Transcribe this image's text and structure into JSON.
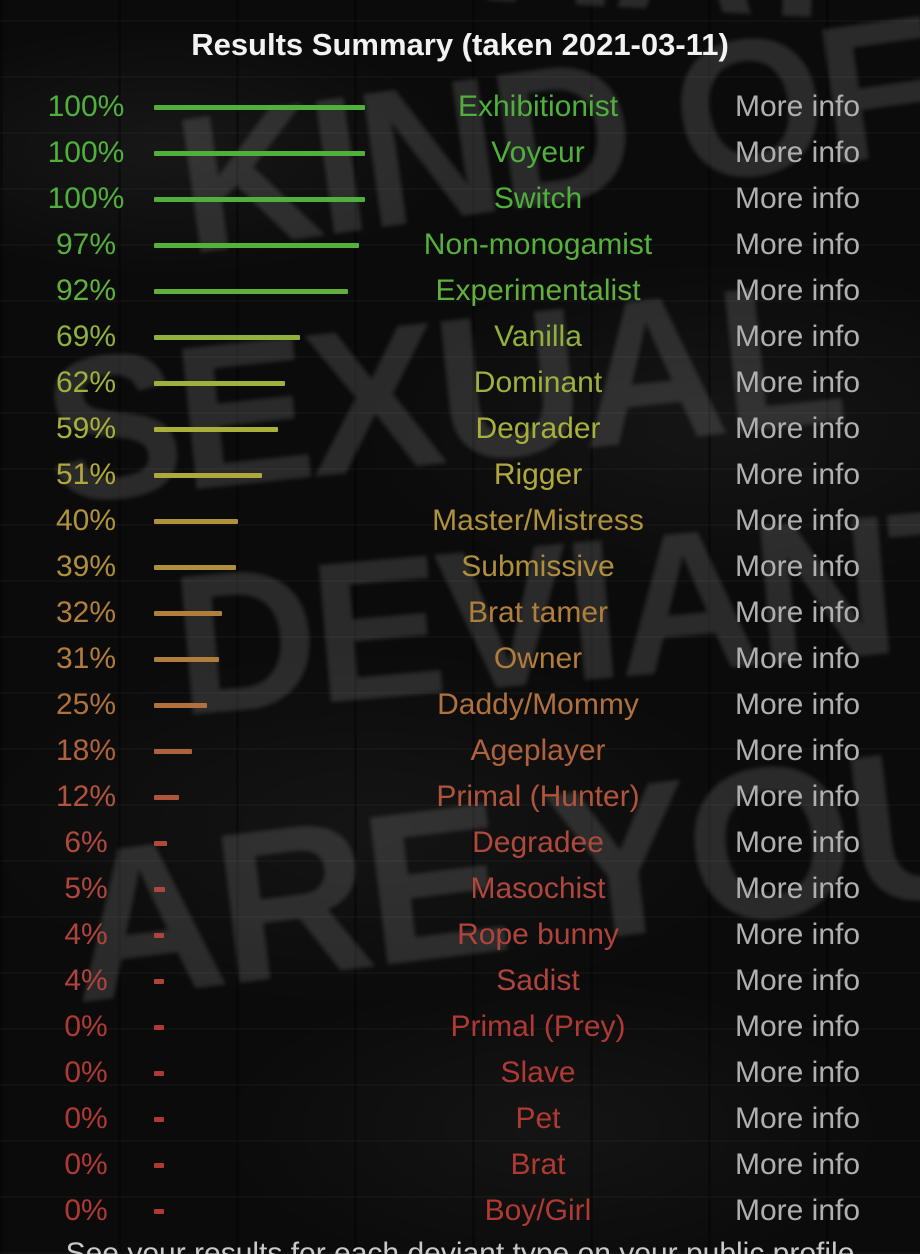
{
  "title": "Results Summary (taken 2021-03-11)",
  "more_info_label": "More info",
  "colors": {
    "background": "#0b0b0b",
    "title_text": "#f2f2f2",
    "more_info_text": "#b0b0b0",
    "footer_text": "#c9c9c9"
  },
  "background": {
    "graffiti_words": [
      "WHAT",
      "KIND OF",
      "SEXUAL",
      "DEVIANT",
      "ARE YOU"
    ]
  },
  "results": [
    {
      "percent": "100%",
      "value": 100,
      "label": "Exhibitionist",
      "color": "#4fb03c"
    },
    {
      "percent": "100%",
      "value": 100,
      "label": "Voyeur",
      "color": "#4fb03c"
    },
    {
      "percent": "100%",
      "value": 100,
      "label": "Switch",
      "color": "#4fb03c"
    },
    {
      "percent": "97%",
      "value": 97,
      "label": "Non-monogamist",
      "color": "#56b03c"
    },
    {
      "percent": "92%",
      "value": 92,
      "label": "Experimentalist",
      "color": "#61b03c"
    },
    {
      "percent": "69%",
      "value": 69,
      "label": "Vanilla",
      "color": "#91b03c"
    },
    {
      "percent": "62%",
      "value": 62,
      "label": "Dominant",
      "color": "#a0b03c"
    },
    {
      "percent": "59%",
      "value": 59,
      "label": "Degrader",
      "color": "#a8b03c"
    },
    {
      "percent": "51%",
      "value": 51,
      "label": "Rigger",
      "color": "#b0a83c"
    },
    {
      "percent": "40%",
      "value": 40,
      "label": "Master/Mistress",
      "color": "#b0913c"
    },
    {
      "percent": "39%",
      "value": 39,
      "label": "Submissive",
      "color": "#b08f3c"
    },
    {
      "percent": "32%",
      "value": 32,
      "label": "Brat tamer",
      "color": "#b07f3c"
    },
    {
      "percent": "31%",
      "value": 31,
      "label": "Owner",
      "color": "#b07d3c"
    },
    {
      "percent": "25%",
      "value": 25,
      "label": "Daddy/Mommy",
      "color": "#b0713c"
    },
    {
      "percent": "18%",
      "value": 18,
      "label": "Ageplayer",
      "color": "#b0623c"
    },
    {
      "percent": "12%",
      "value": 12,
      "label": "Primal (Hunter)",
      "color": "#b0543c"
    },
    {
      "percent": "6%",
      "value": 6,
      "label": "Degradee",
      "color": "#b0483c"
    },
    {
      "percent": "5%",
      "value": 5,
      "label": "Masochist",
      "color": "#b0463c"
    },
    {
      "percent": "4%",
      "value": 4,
      "label": "Rope bunny",
      "color": "#b0443c"
    },
    {
      "percent": "4%",
      "value": 4,
      "label": "Sadist",
      "color": "#b0443c"
    },
    {
      "percent": "0%",
      "value": 0,
      "label": "Primal (Prey)",
      "color": "#b03a33"
    },
    {
      "percent": "0%",
      "value": 0,
      "label": "Slave",
      "color": "#b03a33"
    },
    {
      "percent": "0%",
      "value": 0,
      "label": "Pet",
      "color": "#b03a33"
    },
    {
      "percent": "0%",
      "value": 0,
      "label": "Brat",
      "color": "#b03a33"
    },
    {
      "percent": "0%",
      "value": 0,
      "label": "Boy/Girl",
      "color": "#b03a33"
    }
  ],
  "footer_partial_text": "See your results for each deviant type on your public profile",
  "chart_data": {
    "type": "bar",
    "title": "Results Summary (taken 2021-03-11)",
    "orientation": "horizontal",
    "categories": [
      "Exhibitionist",
      "Voyeur",
      "Switch",
      "Non-monogamist",
      "Experimentalist",
      "Vanilla",
      "Dominant",
      "Degrader",
      "Rigger",
      "Master/Mistress",
      "Submissive",
      "Brat tamer",
      "Owner",
      "Daddy/Mommy",
      "Ageplayer",
      "Primal (Hunter)",
      "Degradee",
      "Masochist",
      "Rope bunny",
      "Sadist",
      "Primal (Prey)",
      "Slave",
      "Pet",
      "Brat",
      "Boy/Girl"
    ],
    "values": [
      100,
      100,
      100,
      97,
      92,
      69,
      62,
      59,
      51,
      40,
      39,
      32,
      31,
      25,
      18,
      12,
      6,
      5,
      4,
      4,
      0,
      0,
      0,
      0,
      0
    ],
    "xlabel": "",
    "ylabel": "",
    "xlim": [
      0,
      100
    ],
    "value_suffix": "%",
    "grid": false,
    "legend": false,
    "color_scale": "green-to-red by value"
  }
}
